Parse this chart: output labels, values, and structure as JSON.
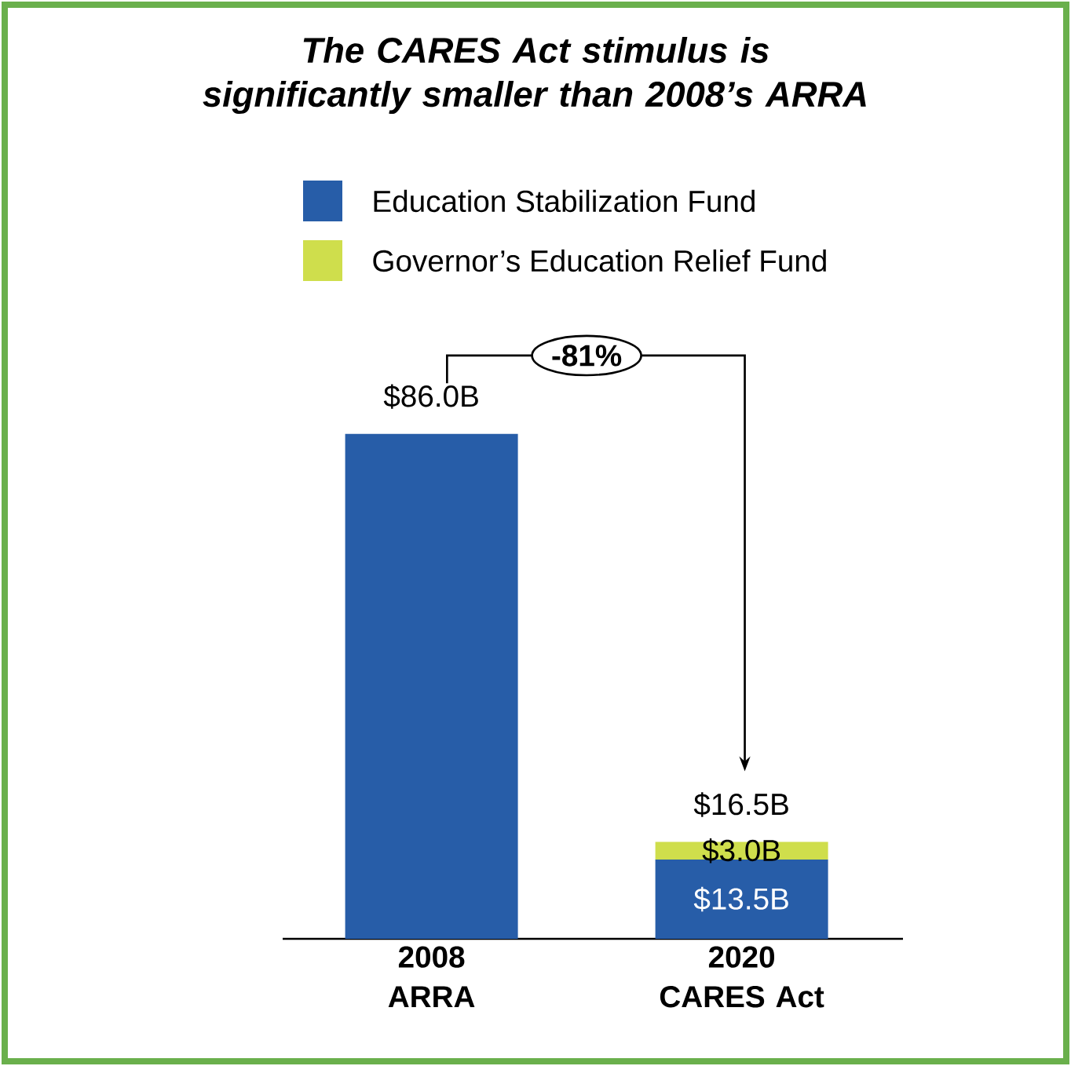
{
  "chart_data": {
    "type": "bar",
    "stacked": true,
    "title": "The CARES Act stimulus is significantly smaller than 2008’s ARRA",
    "categories": [
      "2008\nARRA",
      "2020\nCARES Act"
    ],
    "series": [
      {
        "name": "Education Stabilization Fund",
        "color": "#275da8",
        "values": [
          86.0,
          13.5
        ],
        "value_labels": [
          null,
          "$13.5B"
        ]
      },
      {
        "name": "Governor’s Education Relief Fund",
        "color": "#cfde4c",
        "values": [
          null,
          3.0
        ],
        "value_labels": [
          null,
          "$3.0B"
        ]
      }
    ],
    "totals": [
      "$86.0B",
      "$16.5B"
    ],
    "annotations": [
      "-81%"
    ],
    "legend": "top"
  }
}
